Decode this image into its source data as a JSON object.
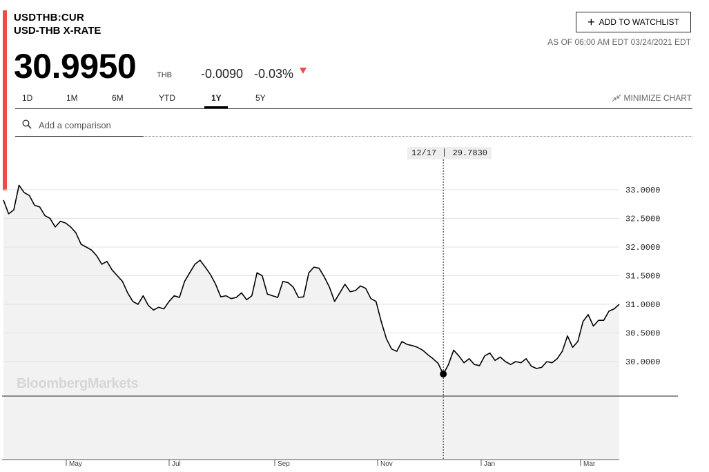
{
  "header": {
    "ticker": "USDTHB:CUR",
    "name": "USD-THB X-RATE",
    "price": "30.9950",
    "currency": "THB",
    "change": "-0.0090",
    "change_pct": "-0.03%",
    "as_of": "AS OF 06:00 AM EDT 03/24/2021 EDT",
    "watchlist_label": "ADD TO WATCHLIST"
  },
  "colors": {
    "accent_red": "#f14a4a",
    "line": "#000000",
    "fill": "#f2f2f2"
  },
  "tabs": [
    {
      "label": "1D",
      "active": false
    },
    {
      "label": "1M",
      "active": false
    },
    {
      "label": "6M",
      "active": false
    },
    {
      "label": "YTD",
      "active": false
    },
    {
      "label": "1Y",
      "active": true
    },
    {
      "label": "5Y",
      "active": false
    }
  ],
  "minimize_label": "MINIMIZE CHART",
  "compare": {
    "placeholder": "Add a comparison"
  },
  "watermark": "BloombergMarkets",
  "tooltip": {
    "date": "12/17",
    "value": "29.7830"
  },
  "chart_data": {
    "type": "area",
    "title": "",
    "xlabel": "",
    "ylabel": "",
    "ylim": [
      29.4,
      33.4
    ],
    "y_ticks": [
      33.0,
      32.5,
      32.0,
      31.5,
      31.0,
      30.5,
      30.0
    ],
    "y_tick_labels": [
      "33.0000",
      "32.5000",
      "32.0000",
      "31.5000",
      "31.0000",
      "30.5000",
      "30.0000"
    ],
    "x_tick_labels": [
      "May",
      "Jul",
      "Sep",
      "Nov",
      "Jan",
      "Mar"
    ],
    "grid": true,
    "series": [
      {
        "values": [
          32.82,
          32.58,
          32.65,
          33.08,
          32.95,
          32.9,
          32.73,
          32.7,
          32.55,
          32.5,
          32.35,
          32.45,
          32.42,
          32.35,
          32.25,
          32.05,
          32.0,
          31.95,
          31.85,
          31.7,
          31.75,
          31.6,
          31.5,
          31.4,
          31.2,
          31.05,
          31.0,
          31.15,
          30.98,
          30.9,
          30.95,
          30.92,
          31.05,
          31.15,
          31.12,
          31.4,
          31.55,
          31.7,
          31.77,
          31.65,
          31.52,
          31.35,
          31.13,
          31.15,
          31.1,
          31.12,
          31.2,
          31.08,
          31.15,
          31.55,
          31.5,
          31.18,
          31.15,
          31.12,
          31.4,
          31.38,
          31.3,
          31.12,
          31.13,
          31.55,
          31.65,
          31.63,
          31.48,
          31.3,
          31.05,
          31.2,
          31.35,
          31.22,
          31.24,
          31.32,
          31.28,
          31.1,
          31.05,
          30.7,
          30.4,
          30.22,
          30.18,
          30.35,
          30.3,
          30.28,
          30.25,
          30.2,
          30.12,
          30.05,
          29.97,
          29.78,
          29.95,
          30.2,
          30.1,
          29.98,
          30.05,
          29.95,
          29.93,
          30.1,
          30.15,
          30.02,
          30.08,
          30.0,
          29.95,
          30.0,
          29.98,
          30.05,
          29.92,
          29.88,
          29.9,
          30.0,
          29.98,
          30.05,
          30.18,
          30.45,
          30.25,
          30.35,
          30.7,
          30.82,
          30.62,
          30.72,
          30.72,
          30.88,
          30.92,
          31.0
        ]
      }
    ]
  }
}
